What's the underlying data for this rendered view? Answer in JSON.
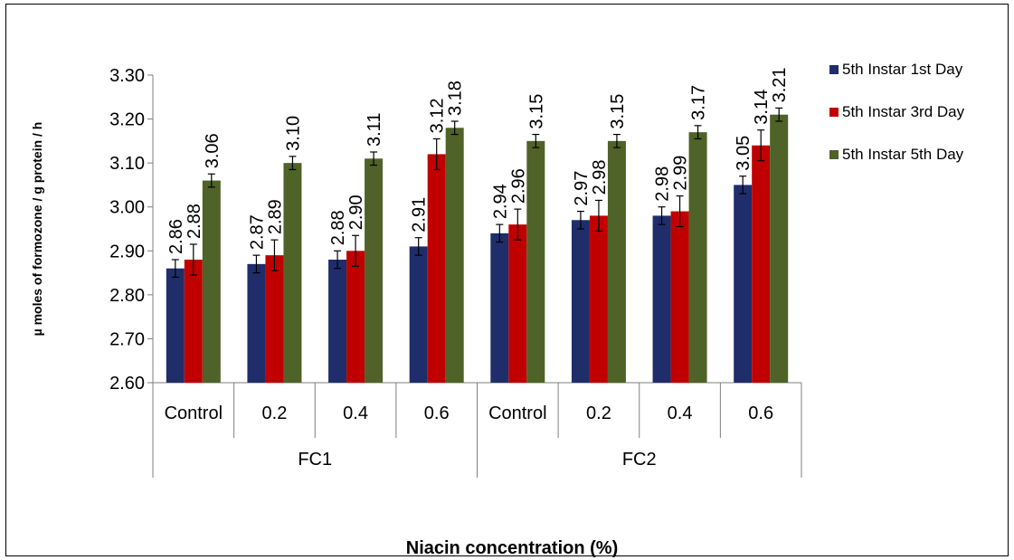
{
  "chart_data": {
    "type": "bar",
    "title": "",
    "xlabel": "Niacin concentration (%)",
    "ylabel": "µ moles of formozone / g protein / h",
    "ylim": [
      2.6,
      3.3
    ],
    "yticks": [
      "2.60",
      "2.70",
      "2.80",
      "2.90",
      "3.00",
      "3.10",
      "3.20",
      "3.30"
    ],
    "groups": [
      {
        "name": "FC1",
        "categories": [
          "Control",
          "0.2",
          "0.4",
          "0.6"
        ]
      },
      {
        "name": "FC2",
        "categories": [
          "Control",
          "0.2",
          "0.4",
          "0.6"
        ]
      }
    ],
    "series": [
      {
        "name": "5th Instar 1st Day",
        "color": "#1f2d6b",
        "values": [
          2.86,
          2.87,
          2.88,
          2.91,
          2.94,
          2.97,
          2.98,
          3.05
        ],
        "labels": [
          "2.86",
          "2.87",
          "2.88",
          "2.91",
          "2.94",
          "2.97",
          "2.98",
          "3.05"
        ],
        "errors": [
          0.02,
          0.02,
          0.02,
          0.02,
          0.02,
          0.02,
          0.02,
          0.02
        ]
      },
      {
        "name": "5th Instar 3rd Day",
        "color": "#c00000",
        "values": [
          2.88,
          2.89,
          2.9,
          3.12,
          2.96,
          2.98,
          2.99,
          3.14
        ],
        "labels": [
          "2.88",
          "2.89",
          "2.90",
          "3.12",
          "2.96",
          "2.98",
          "2.99",
          "3.14"
        ],
        "errors": [
          0.035,
          0.035,
          0.035,
          0.035,
          0.035,
          0.035,
          0.035,
          0.035
        ]
      },
      {
        "name": "5th Instar 5th Day",
        "color": "#4f6228",
        "values": [
          3.06,
          3.1,
          3.11,
          3.18,
          3.15,
          3.15,
          3.17,
          3.21
        ],
        "labels": [
          "3.06",
          "3.10",
          "3.11",
          "3.18",
          "3.15",
          "3.15",
          "3.17",
          "3.21"
        ],
        "errors": [
          0.015,
          0.015,
          0.015,
          0.015,
          0.015,
          0.015,
          0.015,
          0.015
        ]
      }
    ],
    "legend_position": "right",
    "grid": false
  }
}
